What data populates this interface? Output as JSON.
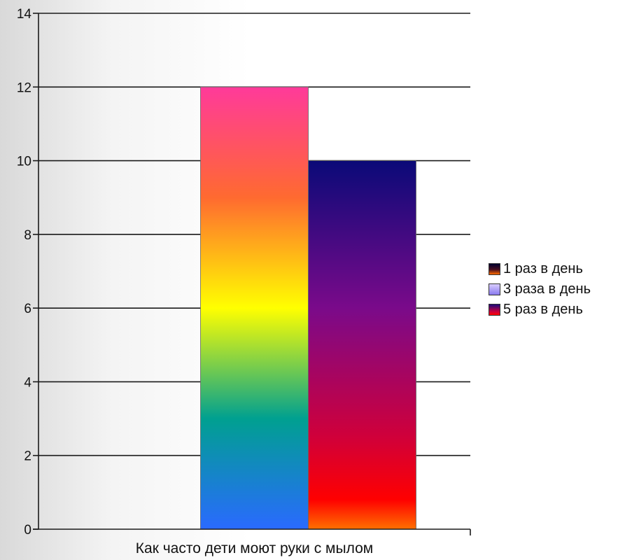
{
  "chart_data": {
    "type": "bar",
    "title": "",
    "xlabel": "",
    "ylabel": "",
    "categories": [
      "Как часто дети моют руки с мылом"
    ],
    "series": [
      {
        "name": "1 раз в день",
        "values": [
          0
        ],
        "swatch": "dark"
      },
      {
        "name": "3 раза в день",
        "values": [
          12
        ],
        "swatch": "rainbow"
      },
      {
        "name": "5 раз в день",
        "values": [
          10
        ],
        "swatch": "purple-red"
      }
    ],
    "ylim": [
      0,
      14
    ],
    "yticks": [
      "0",
      "2",
      "4",
      "6",
      "8",
      "10",
      "12",
      "14"
    ],
    "grid": true,
    "legend": "right"
  },
  "colors": {
    "grid": "#1a1a1a",
    "series_1_swatch": [
      "#000020",
      "#5a1a1a",
      "#ff6a00"
    ],
    "series_2_gradient": [
      "#ff3a9a",
      "#ff6a30",
      "#ffff00",
      "#00a090",
      "#2a6aff"
    ],
    "series_3_gradient": [
      "#1a0a7a",
      "#7a008a",
      "#d0003a",
      "#ff0000",
      "#ff7000"
    ]
  }
}
